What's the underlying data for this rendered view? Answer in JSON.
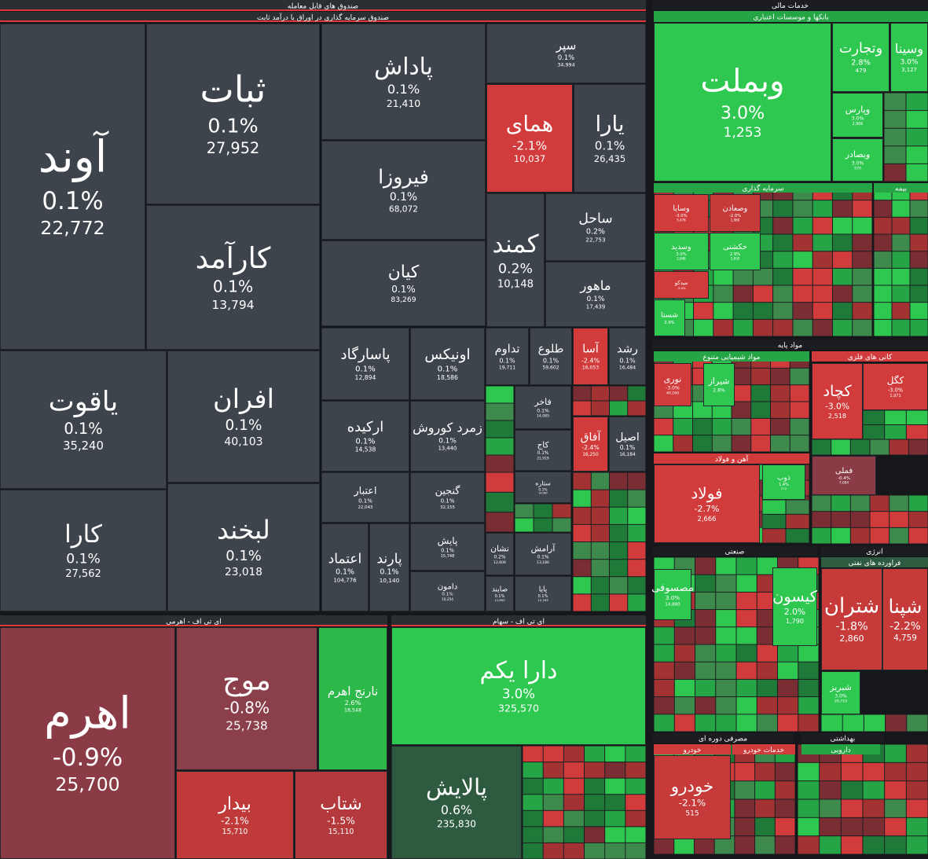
{
  "headers": [
    "صندوق های قابل معامله",
    "صندوق سرمایه گذاری در اوراق با درآمد ثابت",
    "ای تی اف - اهرمی",
    "ای تی اف - سهام",
    "خدمات مالی",
    "بانکها و موسسات اعتباری",
    "سرمایه گذاری",
    "بیمه",
    "مواد پایه",
    "مواد شیمیایی متنوع",
    "کانی های فلزی",
    "آهن و فولاد",
    "صنعتی",
    "انرژی",
    "فراورده های نفتی",
    "مصرفی دوره ای",
    "خودرو",
    "خدمات خودرو",
    "بهداشتی",
    "دارویی"
  ],
  "tiles": [
    {
      "name": "آوند",
      "change": "0.1%",
      "value": "22,772",
      "color": "#3e444c"
    },
    {
      "name": "ثبات",
      "change": "0.1%",
      "value": "27,952",
      "color": "#3e444c"
    },
    {
      "name": "کارآمد",
      "change": "0.1%",
      "value": "13,794",
      "color": "#3e444c"
    },
    {
      "name": "پاداش",
      "change": "0.1%",
      "value": "21,410",
      "color": "#3e444c"
    },
    {
      "name": "فیروزا",
      "change": "0.1%",
      "value": "68,072",
      "color": "#3e444c"
    },
    {
      "name": "کیان",
      "change": "0.1%",
      "value": "83,269",
      "color": "#3e444c"
    },
    {
      "name": "سپر",
      "change": "0.1%",
      "value": "34,994",
      "color": "#3e444c"
    },
    {
      "name": "همای",
      "change": "-2.1%",
      "value": "10,037",
      "color": "#d23b3b"
    },
    {
      "name": "یارا",
      "change": "0.1%",
      "value": "26,435",
      "color": "#3e444c"
    },
    {
      "name": "کمند",
      "change": "0.2%",
      "value": "10,148",
      "color": "#3e444c"
    },
    {
      "name": "ساحل",
      "change": "0.2%",
      "value": "22,753",
      "color": "#3e444c"
    },
    {
      "name": "ماهور",
      "change": "0.1%",
      "value": "17,439",
      "color": "#3e444c"
    },
    {
      "name": "یاقوت",
      "change": "0.1%",
      "value": "35,240",
      "color": "#3e444c"
    },
    {
      "name": "افران",
      "change": "0.1%",
      "value": "40,103",
      "color": "#3e444c"
    },
    {
      "name": "کارا",
      "change": "0.1%",
      "value": "27,562",
      "color": "#3e444c"
    },
    {
      "name": "لبخند",
      "change": "0.1%",
      "value": "23,018",
      "color": "#3e444c"
    },
    {
      "name": "پاسارگاد",
      "change": "0.1%",
      "value": "12,894",
      "color": "#3e444c"
    },
    {
      "name": "اونیکس",
      "change": "0.1%",
      "value": "18,586",
      "color": "#3e444c"
    },
    {
      "name": "ارکیده",
      "change": "0.1%",
      "value": "14,538",
      "color": "#3e444c"
    },
    {
      "name": "زمرد کوروش",
      "change": "0.1%",
      "value": "13,440",
      "color": "#3e444c"
    },
    {
      "name": "اعتبار",
      "change": "0.1%",
      "value": "22,043",
      "color": "#3e444c"
    },
    {
      "name": "گنجین",
      "change": "0.1%",
      "value": "32,155",
      "color": "#3e444c"
    },
    {
      "name": "اعتماد",
      "change": "0.1%",
      "value": "104,776",
      "color": "#3e444c"
    },
    {
      "name": "پارند",
      "change": "0.1%",
      "value": "10,140",
      "color": "#3e444c"
    },
    {
      "name": "پایش",
      "change": "0.1%",
      "value": "15,748",
      "color": "#3e444c"
    },
    {
      "name": "دامون",
      "change": "0.1%",
      "value": "10,254",
      "color": "#3e444c"
    },
    {
      "name": "تداوم",
      "change": "0.1%",
      "value": "19,711",
      "color": "#3e444c"
    },
    {
      "name": "طلوع",
      "change": "0.1%",
      "value": "59,602",
      "color": "#3e444c"
    },
    {
      "name": "آسا",
      "change": "-2.4%",
      "value": "16,053",
      "color": "#d23b3b"
    },
    {
      "name": "رشد",
      "change": "0.1%",
      "value": "16,484",
      "color": "#3e444c"
    },
    {
      "name": "فاخر",
      "change": "0.1%",
      "value": "14,085",
      "color": "#3e444c"
    },
    {
      "name": "کاج",
      "change": "0.1%",
      "value": "21,919",
      "color": "#3e444c"
    },
    {
      "name": "آفاق",
      "change": "-2.4%",
      "value": "16,250",
      "color": "#d23b3b"
    },
    {
      "name": "اصیل",
      "change": "0.1%",
      "value": "16,184",
      "color": "#3e444c"
    },
    {
      "name": "ستاره",
      "change": "0.1%",
      "value": "14,967",
      "color": "#3e444c"
    },
    {
      "name": "آرامش",
      "change": "0.1%",
      "value": "13,186",
      "color": "#3e444c"
    },
    {
      "name": "پایا",
      "change": "0.1%",
      "value": "12,183",
      "color": "#3e444c"
    },
    {
      "name": "نشان",
      "change": "0.2%",
      "value": "12,606",
      "color": "#3e444c"
    },
    {
      "name": "صایند",
      "change": "0.1%",
      "value": "12,650",
      "color": "#3e444c"
    },
    {
      "name": "اهرم",
      "change": "-0.9%",
      "value": "25,700",
      "color": "#8a3b45"
    },
    {
      "name": "موج",
      "change": "-0.8%",
      "value": "25,738",
      "color": "#8a3f4a"
    },
    {
      "name": "نارنج اهرم",
      "change": "2.6%",
      "value": "18,548",
      "color": "#2db84a"
    },
    {
      "name": "بیدار",
      "change": "-2.1%",
      "value": "15,710",
      "color": "#c03a3a"
    },
    {
      "name": "شتاب",
      "change": "-1.5%",
      "value": "15,110",
      "color": "#b3393d"
    },
    {
      "name": "دارا یکم",
      "change": "3.0%",
      "value": "325,570",
      "color": "#2ec851"
    },
    {
      "name": "پالایش",
      "change": "0.6%",
      "value": "235,830",
      "color": "#2e5a40"
    },
    {
      "name": "وبملت",
      "change": "3.0%",
      "value": "1,253",
      "color": "#2ec851"
    },
    {
      "name": "وتجارت",
      "change": "2.8%",
      "value": "479",
      "color": "#2ec851"
    },
    {
      "name": "وسینا",
      "change": "3.0%",
      "value": "3,127",
      "color": "#2ec851"
    },
    {
      "name": "وپارس",
      "change": "3.0%",
      "value": "2,906",
      "color": "#2ec851"
    },
    {
      "name": "وبصادر",
      "change": "3.0%",
      "value": "570",
      "color": "#2ec851"
    },
    {
      "name": "وسایا",
      "change": "-3.0%",
      "value": "5,478",
      "color": "#d23b3b"
    },
    {
      "name": "وصعادن",
      "change": "-2.0%",
      "value": "1,980",
      "color": "#c63a3a"
    },
    {
      "name": "وسدید",
      "change": "3.0%",
      "value": "2,848",
      "color": "#2ec851"
    },
    {
      "name": "حکشتی",
      "change": "2.9%",
      "value": "1,830",
      "color": "#2ec851"
    },
    {
      "name": "میدکو",
      "change": "-3.0%",
      "color": "#d23b3b"
    },
    {
      "name": "شستا",
      "change": "2.9%",
      "color": "#2ec851"
    },
    {
      "name": "نوری",
      "change": "-3.0%",
      "value": "40,160",
      "color": "#d23b3b"
    },
    {
      "name": "شیراز",
      "change": "2.8%",
      "color": "#2ec851"
    },
    {
      "name": "کچاد",
      "change": "-3.0%",
      "value": "2,518",
      "color": "#d23b3b"
    },
    {
      "name": "کگل",
      "change": "-3.0%",
      "value": "1,971",
      "color": "#d23b3b"
    },
    {
      "name": "فولاد",
      "change": "-2.7%",
      "value": "2,666",
      "color": "#d23b3b"
    },
    {
      "name": "ذوب",
      "change": "1.4%",
      "value": "272",
      "color": "#2ec851"
    },
    {
      "name": "فملی",
      "change": "-0.4%",
      "value": "7,084",
      "color": "#8a3b45"
    },
    {
      "name": "مصسوفی",
      "change": "3.0%",
      "value": "14,880",
      "color": "#2ec851"
    },
    {
      "name": "کیسون",
      "change": "2.0%",
      "value": "1,790",
      "color": "#2ec851"
    },
    {
      "name": "شتران",
      "change": "-1.8%",
      "value": "2,860",
      "color": "#c63a3a"
    },
    {
      "name": "شپنا",
      "change": "-2.2%",
      "value": "4,759",
      "color": "#c63a3a"
    },
    {
      "name": "شبریز",
      "change": "3.0%",
      "value": "28,710",
      "color": "#2ec851"
    },
    {
      "name": "خودرو",
      "change": "-2.1%",
      "value": "515",
      "color": "#c63a3a"
    }
  ]
}
